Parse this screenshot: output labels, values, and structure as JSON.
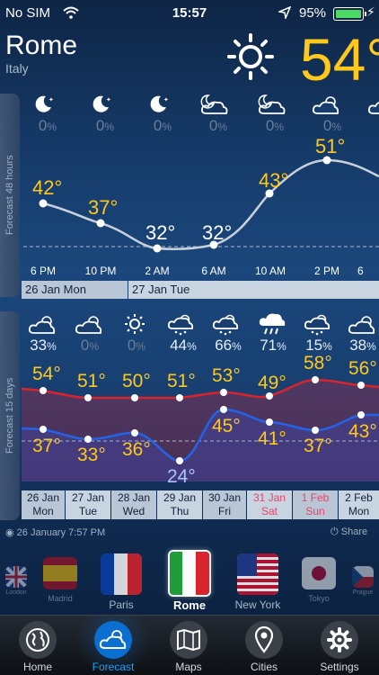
{
  "status_bar": {
    "carrier": "No SIM",
    "time": "15:57",
    "battery": "95%"
  },
  "header": {
    "city": "Rome",
    "country": "Italy",
    "current_temp": "54°"
  },
  "forecast48": {
    "side_label": "Forecast 48 hours",
    "icons": [
      "moon-icon",
      "moon-icon",
      "moon-icon",
      "partly-cloudy-moon-icon",
      "partly-cloudy-moon-icon",
      "partly-cloudy-sun-icon",
      "partly-cloudy-sun-icon"
    ],
    "precip": [
      {
        "v": "0",
        "u": "%"
      },
      {
        "v": "0",
        "u": "%"
      },
      {
        "v": "0",
        "u": "%"
      },
      {
        "v": "0",
        "u": "%"
      },
      {
        "v": "0",
        "u": "%"
      },
      {
        "v": "0",
        "u": "%"
      }
    ],
    "temps": [
      "42°",
      "37°",
      "32°",
      "32°",
      "43°",
      "51°"
    ],
    "times": [
      "6 PM",
      "10 PM",
      "2 AM",
      "6 AM",
      "10 AM",
      "2 PM",
      "6"
    ],
    "dates": [
      "26 Jan Mon",
      "27 Jan Tue"
    ]
  },
  "forecast15": {
    "side_label": "Forecast 15 days",
    "precip": [
      {
        "v": "33",
        "u": "%"
      },
      {
        "v": "0",
        "u": "%"
      },
      {
        "v": "0",
        "u": "%"
      },
      {
        "v": "44",
        "u": "%"
      },
      {
        "v": "66",
        "u": "%"
      },
      {
        "v": "71",
        "u": "%"
      },
      {
        "v": "15",
        "u": "%"
      },
      {
        "v": "38",
        "u": "%"
      }
    ],
    "highs": [
      "54°",
      "51°",
      "50°",
      "51°",
      "53°",
      "49°",
      "58°",
      "56°"
    ],
    "lows": [
      "37°",
      "33°",
      "36°",
      "24°",
      "45°",
      "41°",
      "37°",
      "43°"
    ],
    "days": [
      {
        "date": "26 Jan",
        "day": "Mon"
      },
      {
        "date": "27 Jan",
        "day": "Tue"
      },
      {
        "date": "28 Jan",
        "day": "Wed"
      },
      {
        "date": "29 Jan",
        "day": "Thu"
      },
      {
        "date": "30 Jan",
        "day": "Fri"
      },
      {
        "date": "31 Jan",
        "day": "Sat"
      },
      {
        "date": "1 Feb",
        "day": "Sun"
      },
      {
        "date": "2 Feb",
        "day": "Mon"
      }
    ]
  },
  "footer": {
    "updated": "26 January 7:57 PM",
    "share": "Share"
  },
  "cities": [
    {
      "name": "London"
    },
    {
      "name": "Madrid"
    },
    {
      "name": "Paris"
    },
    {
      "name": "Rome"
    },
    {
      "name": "New York"
    },
    {
      "name": "Tokyo"
    },
    {
      "name": "Prague"
    }
  ],
  "tabs": [
    {
      "label": "Home",
      "icon": "globe-icon"
    },
    {
      "label": "Forecast",
      "icon": "cloud-sun-icon"
    },
    {
      "label": "Maps",
      "icon": "map-icon"
    },
    {
      "label": "Cities",
      "icon": "pin-icon"
    },
    {
      "label": "Settings",
      "icon": "gear-icon"
    }
  ],
  "colors": {
    "accent": "#ffc81a",
    "high_line": "#d8242c",
    "low_line": "#2463e8",
    "tab_active": "#1aa0ff"
  }
}
